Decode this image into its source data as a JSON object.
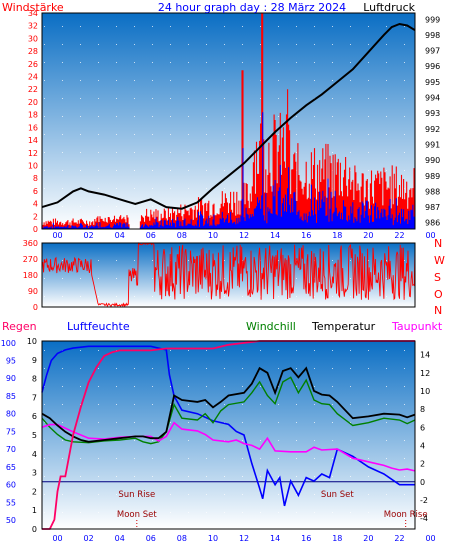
{
  "header": {
    "left_label": "Windstärke",
    "title": "24 hour graph day : 28 März 2024",
    "right_label": "Luftdruck"
  },
  "colors": {
    "panel_top": "#0a6ec4",
    "panel_bottom": "#ffffff",
    "wind": "#ff0000",
    "gust_base": "#0000ff",
    "pressure": "#000000",
    "humidity": "#0000ff",
    "temperature": "#000000",
    "windchill": "#008000",
    "dewpoint": "#ff00ff",
    "axis_left": "#0000ff",
    "axis_red": "#ff0000",
    "rain": "#ff0066"
  },
  "chart_data": [
    {
      "type": "line",
      "name": "wind-pressure",
      "x_ticks": [
        "00",
        "02",
        "04",
        "06",
        "08",
        "10",
        "12",
        "14",
        "16",
        "18",
        "20",
        "22",
        "00"
      ],
      "left_axis": {
        "label": "Windstärke",
        "ticks": [
          0,
          2,
          4,
          6,
          8,
          10,
          12,
          14,
          16,
          18,
          20,
          22,
          24,
          26,
          28,
          30,
          32,
          34
        ],
        "ylim": [
          0,
          34
        ]
      },
      "right_axis": {
        "label": "Luftdruck",
        "ticks": [
          986,
          987,
          988,
          989,
          990,
          991,
          992,
          993,
          994,
          995,
          996,
          997,
          998,
          999
        ],
        "ylim": [
          985.6,
          999.4
        ]
      },
      "pressure_series": {
        "x": [
          0,
          1,
          2,
          2.5,
          3,
          4,
          5,
          6,
          7,
          8,
          9,
          10,
          11,
          12,
          13,
          14,
          15,
          16,
          17,
          18,
          19,
          20,
          21,
          22,
          22.5,
          23,
          23.5,
          24
        ],
        "y": [
          987.0,
          987.3,
          988.0,
          988.2,
          988.0,
          987.8,
          987.5,
          987.2,
          987.5,
          987.0,
          986.9,
          987.3,
          988.2,
          989.0,
          989.8,
          990.8,
          991.8,
          992.7,
          993.5,
          994.2,
          995.0,
          995.8,
          996.9,
          998.0,
          998.5,
          998.7,
          998.6,
          998.3
        ]
      }
    },
    {
      "type": "line",
      "name": "wind-direction",
      "x_ticks": [
        "00",
        "02",
        "04",
        "06",
        "08",
        "10",
        "12",
        "14",
        "16",
        "18",
        "20",
        "22",
        "00"
      ],
      "left_ticks": [
        0,
        90,
        180,
        270,
        360
      ],
      "right_labels": [
        "N",
        "W",
        "S",
        "O",
        "N"
      ],
      "ylim": [
        0,
        360
      ]
    },
    {
      "type": "line",
      "name": "temperature-humidity",
      "header_labels": {
        "rain": "Regen",
        "humidity": "Luftfeuchte",
        "windchill": "Windchill",
        "temperature": "Temperatur",
        "dewpoint": "Taupunkt"
      },
      "x_ticks": [
        "00",
        "02",
        "04",
        "06",
        "08",
        "10",
        "12",
        "14",
        "16",
        "18",
        "20",
        "22",
        "00"
      ],
      "rain_ticks": [
        0,
        1,
        2,
        3,
        4,
        5,
        6,
        7,
        8,
        9,
        10
      ],
      "humidity_ticks": [
        50,
        55,
        60,
        65,
        70,
        75,
        80,
        85,
        90,
        95,
        100
      ],
      "temp_ticks": [
        -4,
        -2,
        0,
        2,
        4,
        6,
        8,
        10,
        12,
        14
      ],
      "temp_ylim": [
        -5.2,
        15.5
      ],
      "events": [
        {
          "label": "Sun Rise",
          "x": 6.1
        },
        {
          "label": "Moon Set",
          "x": 6.1
        },
        {
          "label": "Sun Set",
          "x": 19.0
        },
        {
          "label": "Moon Rise",
          "x": 23.4
        }
      ],
      "temperature": {
        "x": [
          0,
          0.5,
          1,
          1.5,
          2,
          2.5,
          3,
          4,
          5,
          6,
          6.5,
          7,
          7.5,
          8,
          8.5,
          9,
          10,
          10.5,
          11,
          11.5,
          12,
          13,
          13.5,
          14,
          14.5,
          15,
          15.5,
          16,
          16.5,
          17,
          17.5,
          18,
          18.5,
          19,
          20,
          21,
          22,
          23,
          23.5,
          24
        ],
        "y": [
          7.5,
          7,
          6.2,
          5.5,
          5,
          4.6,
          4.4,
          4.6,
          4.8,
          5,
          5,
          4.8,
          4.8,
          5.5,
          9.5,
          9,
          8.8,
          9,
          8.2,
          8.8,
          9.5,
          9.8,
          10.8,
          12.5,
          12,
          9.8,
          12.2,
          12.5,
          11.5,
          12.5,
          10,
          9.6,
          9.5,
          8.8,
          7,
          7.2,
          7.5,
          7.4,
          7.1,
          7.4
        ]
      },
      "windchill": {
        "x": [
          0,
          0.5,
          1,
          1.5,
          2,
          3,
          4,
          5,
          6,
          6.5,
          7,
          7.5,
          8,
          8.5,
          9,
          10,
          10.5,
          11,
          11.5,
          12,
          13,
          13.5,
          14,
          14.5,
          15,
          15.5,
          16,
          16.5,
          17,
          17.5,
          18,
          18.5,
          19,
          20,
          21,
          22,
          23,
          23.5,
          24
        ],
        "y": [
          7,
          6,
          5.2,
          4.6,
          4.4,
          4.3,
          4.5,
          4.6,
          4.8,
          4.4,
          4.2,
          4.4,
          5.5,
          8.5,
          7,
          6.8,
          7.5,
          6.5,
          7.8,
          8.5,
          8.8,
          9.8,
          11,
          9.5,
          8.6,
          11,
          11.5,
          9.8,
          11.2,
          9,
          8.6,
          8.5,
          7.5,
          6.2,
          6.5,
          7,
          6.8,
          6.4,
          6.8
        ]
      },
      "humidity": {
        "x": [
          0,
          0.3,
          0.6,
          1,
          1.5,
          2,
          3,
          4,
          5,
          6,
          6.5,
          7,
          7.5,
          8,
          8.2,
          8.5,
          9,
          10,
          11,
          12,
          12.5,
          13,
          13.5,
          14,
          14.2,
          14.5,
          15,
          15.3,
          15.6,
          16,
          16.5,
          17,
          17.5,
          18,
          18.5,
          19,
          20,
          21,
          22,
          23,
          24
        ],
        "y": [
          86,
          91,
          95,
          97,
          98,
          98.5,
          99,
          99,
          99,
          99,
          99,
          99,
          98.5,
          98,
          91,
          85,
          81,
          80,
          78,
          77,
          75,
          74,
          66,
          59,
          56,
          64,
          60,
          62,
          54,
          61,
          57,
          62,
          61,
          63,
          62,
          70,
          68,
          65,
          63,
          60,
          60
        ]
      },
      "dewpoint": {
        "x": [
          0,
          0.5,
          1,
          2,
          3,
          4,
          5,
          6,
          7,
          7.5,
          8,
          8.5,
          9,
          10,
          10.5,
          11,
          12,
          12.5,
          13,
          13.5,
          14,
          14.5,
          15,
          16,
          17,
          17.5,
          18,
          19,
          20,
          21,
          22,
          22.5,
          23,
          23.5,
          24
        ],
        "y": [
          6,
          6.3,
          6.3,
          5.5,
          4.8,
          4.7,
          4.9,
          5,
          5,
          4.5,
          5,
          6.5,
          5.8,
          5.6,
          5.2,
          4.6,
          4.4,
          4.6,
          4.2,
          4,
          3.6,
          4.8,
          3.4,
          3.3,
          3.3,
          3.8,
          3.5,
          3.6,
          2.6,
          2.2,
          1.8,
          1.5,
          1.3,
          1.4,
          1.2
        ]
      },
      "rain": {
        "x": [
          0,
          0.5,
          0.8,
          1.0,
          1.2,
          1.5,
          2,
          2.5,
          3,
          3.5,
          4,
          4.5,
          5,
          6,
          7,
          8,
          9,
          10,
          11,
          12,
          13,
          14,
          15,
          16,
          17,
          18,
          19,
          20,
          21,
          22,
          23,
          24
        ],
        "y": [
          0,
          0,
          0.5,
          2,
          2.8,
          2.8,
          5,
          6.5,
          7.8,
          8.6,
          9.2,
          9.4,
          9.5,
          9.5,
          9.5,
          9.6,
          9.6,
          9.6,
          9.6,
          9.8,
          9.9,
          10,
          10,
          10,
          10,
          10,
          10,
          10,
          10,
          10,
          10,
          10
        ]
      }
    }
  ]
}
